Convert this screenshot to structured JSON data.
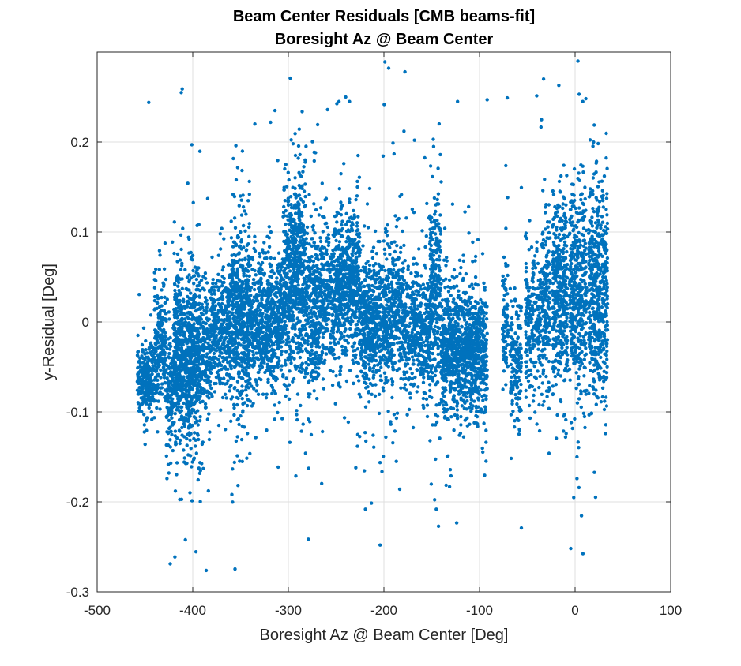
{
  "chart_data": {
    "type": "scatter",
    "title": "Beam Center Residuals [CMB beams-fit]",
    "subtitle": "Boresight Az @ Beam Center",
    "xlabel": "Boresight Az @ Beam Center [Deg]",
    "ylabel": "y-Residual [Deg]",
    "xlim": [
      -500,
      100
    ],
    "ylim": [
      -0.3,
      0.3
    ],
    "xticks": [
      -500,
      -400,
      -300,
      -200,
      -100,
      0,
      100
    ],
    "yticks": [
      -0.3,
      -0.2,
      -0.1,
      0,
      0.1,
      0.2
    ],
    "xtick_labels": [
      "-500",
      "-400",
      "-300",
      "-200",
      "-100",
      "0",
      "100"
    ],
    "ytick_labels": [
      "-0.3",
      "-0.2",
      "-0.1",
      "0",
      "0.1",
      "0.2"
    ],
    "grid": true,
    "marker_color": "#0072BD",
    "series": [
      {
        "clusters": [
          {
            "x_range": [
              -458,
              -440
            ],
            "y_center": -0.065,
            "y_spread": 0.02,
            "count": 260
          },
          {
            "x_range": [
              -440,
              -428
            ],
            "y_center": -0.03,
            "y_spread": 0.035,
            "count": 200
          },
          {
            "x_range": [
              -428,
              -420
            ],
            "y_center": -0.08,
            "y_spread": 0.04,
            "count": 120
          },
          {
            "x_range": [
              -420,
              -392
            ],
            "y_center": -0.04,
            "y_spread": 0.045,
            "count": 900
          },
          {
            "x_range": [
              -392,
              -380
            ],
            "y_center": -0.03,
            "y_spread": 0.04,
            "count": 180
          },
          {
            "x_range": [
              -380,
              -360
            ],
            "y_center": -0.01,
            "y_spread": 0.03,
            "count": 350
          },
          {
            "x_range": [
              -360,
              -340
            ],
            "y_center": 0.01,
            "y_spread": 0.05,
            "count": 550
          },
          {
            "x_range": [
              -340,
              -305
            ],
            "y_center": 0.0,
            "y_spread": 0.035,
            "count": 650
          },
          {
            "x_range": [
              -305,
              -282
            ],
            "y_center": 0.045,
            "y_spread": 0.055,
            "count": 650
          },
          {
            "x_range": [
              -282,
              -268
            ],
            "y_center": 0.01,
            "y_spread": 0.05,
            "count": 300
          },
          {
            "x_range": [
              -268,
              -250
            ],
            "y_center": 0.03,
            "y_spread": 0.04,
            "count": 300
          },
          {
            "x_range": [
              -250,
              -225
            ],
            "y_center": 0.045,
            "y_spread": 0.04,
            "count": 600
          },
          {
            "x_range": [
              -225,
              -205
            ],
            "y_center": 0.0,
            "y_spread": 0.035,
            "count": 400
          },
          {
            "x_range": [
              -205,
              -180
            ],
            "y_center": 0.01,
            "y_spread": 0.04,
            "count": 450
          },
          {
            "x_range": [
              -180,
              -152
            ],
            "y_center": -0.01,
            "y_spread": 0.035,
            "count": 450
          },
          {
            "x_range": [
              -152,
              -140
            ],
            "y_center": 0.03,
            "y_spread": 0.06,
            "count": 300
          },
          {
            "x_range": [
              -140,
              -120
            ],
            "y_center": -0.03,
            "y_spread": 0.035,
            "count": 450
          },
          {
            "x_range": [
              -120,
              -92
            ],
            "y_center": -0.035,
            "y_spread": 0.035,
            "count": 600
          },
          {
            "x_range": [
              -76,
              -70
            ],
            "y_center": 0.0,
            "y_spread": 0.035,
            "count": 80
          },
          {
            "x_range": [
              -68,
              -56
            ],
            "y_center": -0.04,
            "y_spread": 0.035,
            "count": 150
          },
          {
            "x_range": [
              -52,
              -36
            ],
            "y_center": 0.0,
            "y_spread": 0.04,
            "count": 220
          },
          {
            "x_range": [
              -36,
              -26
            ],
            "y_center": 0.02,
            "y_spread": 0.045,
            "count": 180
          },
          {
            "x_range": [
              -24,
              -8
            ],
            "y_center": 0.03,
            "y_spread": 0.055,
            "count": 380
          },
          {
            "x_range": [
              -6,
              12
            ],
            "y_center": 0.035,
            "y_spread": 0.06,
            "count": 420
          },
          {
            "x_range": [
              14,
              34
            ],
            "y_center": 0.04,
            "y_spread": 0.06,
            "count": 500
          }
        ],
        "outliers": [
          [
            -446,
            0.244
          ],
          [
            -412,
            0.255
          ],
          [
            -411,
            0.259
          ],
          [
            -401,
            0.197
          ],
          [
            -425,
            -0.168
          ],
          [
            -423,
            -0.157
          ],
          [
            -389,
            -0.163
          ],
          [
            -314,
            0.235
          ],
          [
            -298,
            0.271
          ],
          [
            -282,
            -0.146
          ],
          [
            -259,
            0.236
          ],
          [
            -247,
            0.245
          ],
          [
            -240,
            0.25
          ],
          [
            -236,
            0.245
          ],
          [
            -199,
            0.289
          ],
          [
            -195,
            0.282
          ],
          [
            -178,
            0.278
          ],
          [
            -168,
            0.202
          ],
          [
            -204,
            -0.248
          ],
          [
            -187,
            -0.155
          ],
          [
            -179,
            0.212
          ],
          [
            -123,
            0.245
          ],
          [
            -92,
            0.247
          ],
          [
            -71,
            0.249
          ],
          [
            -33,
            0.27
          ],
          [
            -17,
            0.263
          ],
          [
            1,
            0.303
          ],
          [
            3,
            0.29
          ],
          [
            8,
            0.245
          ],
          [
            2,
            -0.15
          ],
          [
            -10,
            -0.128
          ],
          [
            -198,
            -0.128
          ],
          [
            -227,
            0.185
          ],
          [
            -335,
            0.22
          ],
          [
            -148,
            0.195
          ]
        ]
      }
    ]
  }
}
